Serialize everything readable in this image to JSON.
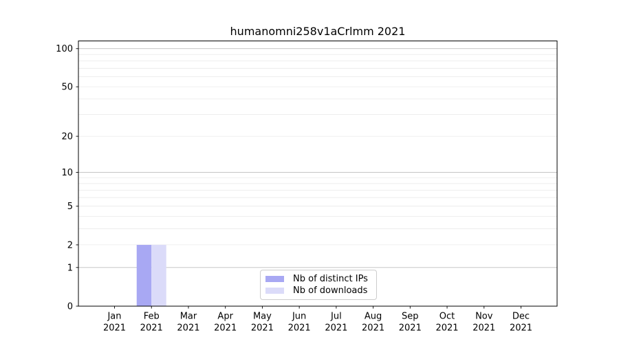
{
  "chart_data": {
    "type": "bar",
    "title": "humanomni258v1aCrlmm 2021",
    "categories": [
      "Jan",
      "Feb",
      "Mar",
      "Apr",
      "May",
      "Jun",
      "Jul",
      "Aug",
      "Sep",
      "Oct",
      "Nov",
      "Dec"
    ],
    "category_year": "2021",
    "series": [
      {
        "name": "Nb of distinct IPs",
        "color": "#a8a8f3",
        "values": [
          0,
          2,
          0,
          0,
          0,
          0,
          0,
          0,
          0,
          0,
          0,
          0
        ]
      },
      {
        "name": "Nb of downloads",
        "color": "#dbdbf9",
        "values": [
          0,
          2,
          0,
          0,
          0,
          0,
          0,
          0,
          0,
          0,
          0,
          0
        ]
      }
    ],
    "xlabel": "",
    "ylabel": "",
    "y_axis": {
      "scale": "log10(1+y)",
      "tick_values": [
        0,
        1,
        2,
        5,
        10,
        20,
        50,
        100
      ],
      "major_grid_values": [
        1,
        10,
        100
      ],
      "minor_grid_values": [
        2,
        3,
        4,
        5,
        6,
        7,
        8,
        9,
        20,
        30,
        40,
        50,
        60,
        70,
        80,
        90
      ],
      "ylim": [
        0,
        115
      ]
    },
    "legend": {
      "position": "lower center"
    },
    "grid": true,
    "colors": {
      "major_grid": "#bdbdbd",
      "minor_grid": "#e9e9e9",
      "spine": "#000000",
      "tick_text": "#000000",
      "background": "#ffffff"
    }
  }
}
